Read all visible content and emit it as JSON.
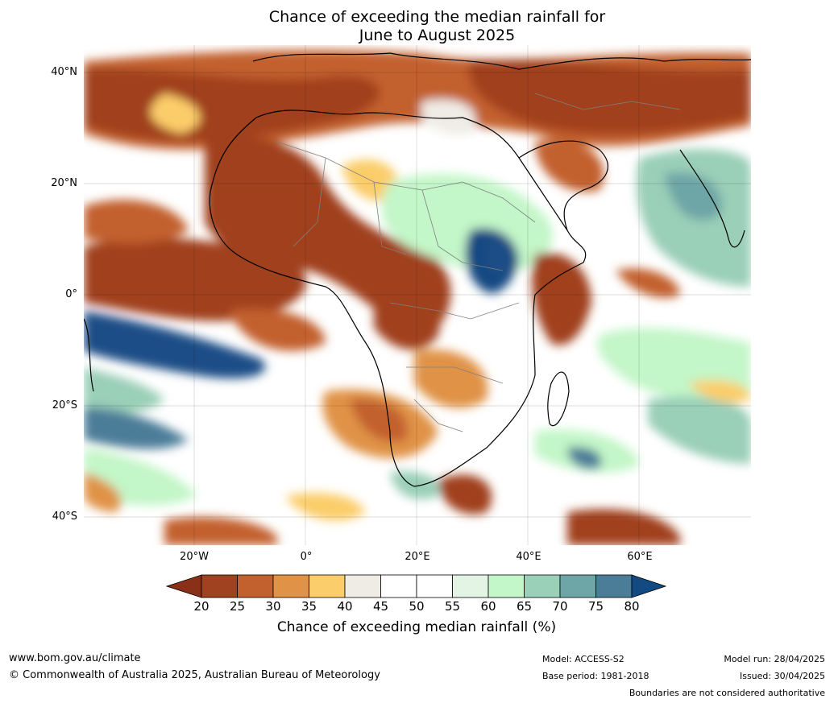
{
  "title": {
    "line1": "Chance of exceeding the median rainfall for",
    "line2": "June to August 2025"
  },
  "map": {
    "latitude_labels": [
      "40°N",
      "20°N",
      "0°",
      "20°S",
      "40°S"
    ],
    "longitude_labels": [
      "20°W",
      "0°",
      "20°E",
      "40°E",
      "60°E"
    ]
  },
  "colorbar": {
    "ticks": [
      "20",
      "25",
      "30",
      "35",
      "40",
      "45",
      "50",
      "55",
      "60",
      "65",
      "70",
      "75",
      "80"
    ],
    "colors": [
      "#a0411f",
      "#c2602e",
      "#e09346",
      "#fbcd6b",
      "#efece6",
      "#ffffff",
      "#ffffff",
      "#e4f4e4",
      "#c3f6c8",
      "#9acfb8",
      "#6ea5a6",
      "#4b7d98",
      "#1a4e86"
    ],
    "under_color": "#8a3019",
    "over_color": "#134a82",
    "label": "Chance of exceeding median rainfall (%)"
  },
  "footer": {
    "website": "www.bom.gov.au/climate",
    "copyright": "© Commonwealth of Australia 2025, Australian Bureau of Meteorology",
    "model": "Model: ACCESS-S2",
    "base_period": "Base period: 1981-2018",
    "model_run": "Model run: 28/04/2025",
    "issued": "Issued: 30/04/2025",
    "disclaimer": "Boundaries are not considered authoritative"
  }
}
